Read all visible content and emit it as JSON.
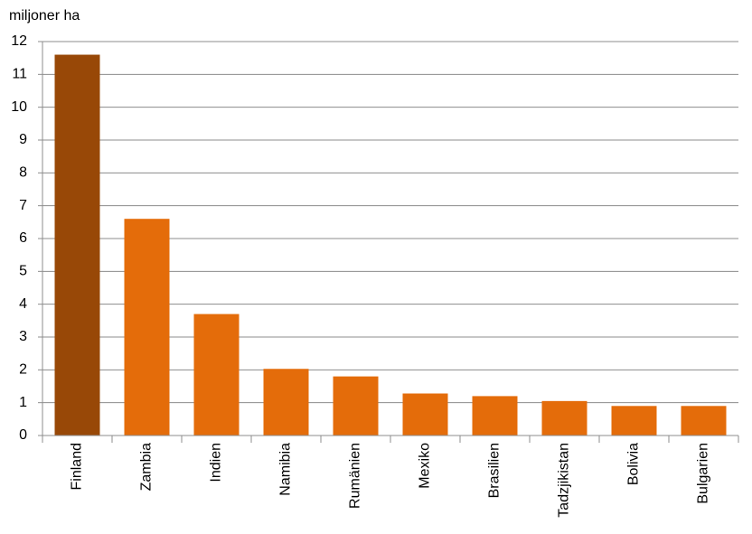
{
  "chart_data": {
    "type": "bar",
    "y_label": "miljoner ha",
    "categories": [
      "Finland",
      "Zambia",
      "Indien",
      "Namibia",
      "Rumänien",
      "Mexiko",
      "Brasilien",
      "Tadzjikistan",
      "Bolivia",
      "Bulgarien"
    ],
    "values": [
      11.6,
      6.6,
      3.7,
      2.03,
      1.8,
      1.28,
      1.2,
      1.05,
      0.9,
      0.9
    ],
    "colors": [
      "#984807",
      "#e46c0a",
      "#e46c0a",
      "#e46c0a",
      "#e46c0a",
      "#e46c0a",
      "#e46c0a",
      "#e46c0a",
      "#e46c0a",
      "#e46c0a"
    ],
    "ylim": [
      0,
      12
    ],
    "yticks": [
      0,
      1,
      2,
      3,
      4,
      5,
      6,
      7,
      8,
      9,
      10,
      11,
      12
    ],
    "grid": true
  }
}
